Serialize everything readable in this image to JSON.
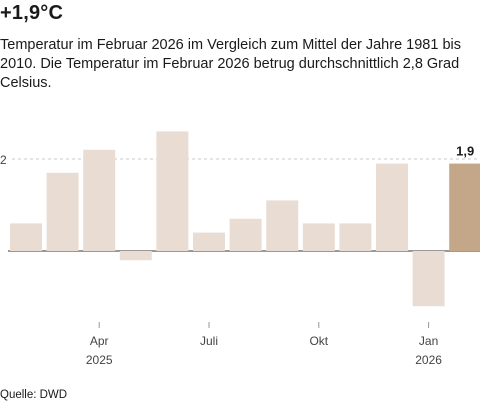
{
  "headline": "+1,9°C",
  "subtitle": "Temperatur im Februar 2026 im Vergleich zum Mittel der Jahre 1981 bis 2010. Die Temperatur im Februar 2026 betrug durchschnittlich 2,8 Grad Celsius.",
  "source": "Quelle: DWD",
  "colors": {
    "bar": "#e9ddd3",
    "highlight": "#c4a689",
    "gridline": "#c8c8c8",
    "axis": "#333333"
  },
  "chart_data": {
    "type": "bar",
    "title": "",
    "xlabel": "",
    "ylabel": "",
    "categories": [
      "2025-02",
      "2025-03",
      "2025-04",
      "2025-05",
      "2025-06",
      "2025-07",
      "2025-08",
      "2025-09",
      "2025-10",
      "2025-11",
      "2025-12",
      "2026-01",
      "2026-02"
    ],
    "values": [
      0.6,
      1.7,
      2.2,
      -0.2,
      2.6,
      0.4,
      0.7,
      1.1,
      0.6,
      0.6,
      1.9,
      -1.2,
      1.9
    ],
    "highlight_index": 12,
    "data_labels": [
      {
        "index": 12,
        "text": "1,9"
      }
    ],
    "y_ticks": [
      {
        "value": 2,
        "label": "2"
      }
    ],
    "x_ticks": [
      {
        "index": 2,
        "label": "Apr",
        "sublabel": "2025"
      },
      {
        "index": 5,
        "label": "Juli",
        "sublabel": ""
      },
      {
        "index": 8,
        "label": "Okt",
        "sublabel": ""
      },
      {
        "index": 11,
        "label": "Jan",
        "sublabel": "2026"
      }
    ],
    "ylim": [
      -1.5,
      2.8
    ],
    "grid": true,
    "legend": "none"
  }
}
